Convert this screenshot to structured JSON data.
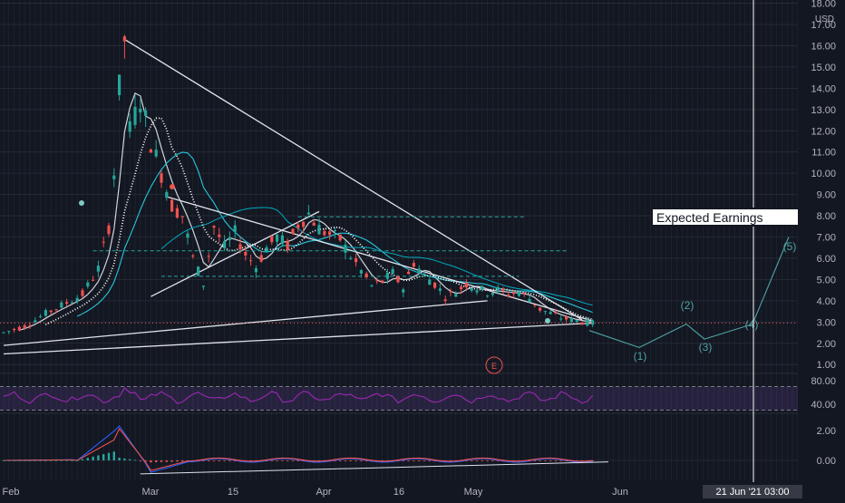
{
  "chart_data": [
    {
      "type": "candlestick",
      "currency": "USD",
      "y_ticks": [
        "18.00",
        "17.00",
        "16.00",
        "15.00",
        "14.00",
        "13.00",
        "12.00",
        "11.00",
        "10.00",
        "9.00",
        "8.00",
        "7.00",
        "6.00",
        "5.00",
        "4.00",
        "3.00",
        "2.00",
        "1.00"
      ],
      "ylim": [
        0.5,
        18.2
      ],
      "last_price": "2.95",
      "x_ticks": [
        "Feb",
        "Mar",
        "15",
        "Apr",
        "16",
        "May",
        "Jun"
      ],
      "crosshair_label": "21 Jun '21   03:00",
      "annotation": "Expected Earnings",
      "earnings_marker": "E",
      "wave_labels": [
        "(1)",
        "(2)",
        "(3)",
        "(4)",
        "(5)"
      ],
      "wave_points": [
        [
          0,
          2.6
        ],
        [
          1,
          1.8
        ],
        [
          2,
          2.9
        ],
        [
          3,
          2.2
        ],
        [
          4,
          2.9
        ],
        [
          5,
          7.0
        ]
      ],
      "price_path": [
        [
          0,
          2.5
        ],
        [
          4,
          2.8
        ],
        [
          8,
          3.4
        ],
        [
          12,
          3.9
        ],
        [
          15,
          4.3
        ],
        [
          18,
          5.5
        ],
        [
          20,
          7.5
        ],
        [
          21,
          10
        ],
        [
          22,
          14
        ],
        [
          23,
          16.3
        ],
        [
          24,
          12
        ],
        [
          26,
          13.5
        ],
        [
          28,
          11.5
        ],
        [
          30,
          10
        ],
        [
          32,
          8.5
        ],
        [
          34,
          8
        ],
        [
          36,
          6
        ],
        [
          38,
          4.8
        ],
        [
          40,
          7.5
        ],
        [
          42,
          6.5
        ],
        [
          44,
          7.2
        ],
        [
          46,
          6.2
        ],
        [
          48,
          5.6
        ],
        [
          50,
          6.5
        ],
        [
          52,
          7
        ],
        [
          54,
          6.6
        ],
        [
          56,
          7.6
        ],
        [
          58,
          8.1
        ],
        [
          60,
          7.4
        ],
        [
          62,
          7.1
        ],
        [
          64,
          6.9
        ],
        [
          66,
          6.1
        ],
        [
          68,
          5.4
        ],
        [
          70,
          4.7
        ],
        [
          72,
          4.9
        ],
        [
          74,
          5.3
        ],
        [
          76,
          4.6
        ],
        [
          78,
          5.8
        ],
        [
          80,
          5.2
        ],
        [
          82,
          4.8
        ],
        [
          84,
          4.2
        ],
        [
          86,
          4.4
        ],
        [
          88,
          4.8
        ],
        [
          90,
          4.6
        ],
        [
          92,
          4.4
        ],
        [
          94,
          4.5
        ],
        [
          96,
          4.3
        ],
        [
          98,
          4.4
        ],
        [
          100,
          4.1
        ],
        [
          102,
          3.6
        ],
        [
          104,
          3.4
        ],
        [
          106,
          3.2
        ],
        [
          108,
          3.1
        ],
        [
          110,
          3.0
        ],
        [
          112,
          2.95
        ]
      ]
    },
    {
      "type": "line",
      "indicator": "RSI",
      "y_ticks": [
        "80.00",
        "40.00"
      ],
      "ylim": [
        30,
        90
      ]
    },
    {
      "type": "line",
      "indicator": "MACD",
      "y_ticks": [
        "2.00",
        "0.00"
      ],
      "ylim": [
        -0.6,
        3.2
      ]
    }
  ],
  "colors": {
    "background": "#131722",
    "grid": "#2a2e39",
    "up": "#26a69a",
    "down": "#ef5350",
    "rsi": "#9c27b0",
    "price_label": "#ef5350"
  }
}
